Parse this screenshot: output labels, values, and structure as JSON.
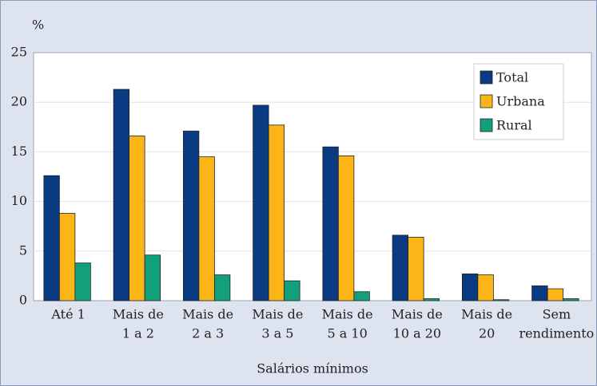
{
  "chart_data": {
    "type": "bar",
    "y_unit_label": "%",
    "x_axis_label": "Salários mínimos",
    "categories": [
      [
        "Até 1"
      ],
      [
        "Mais de",
        "1 a 2"
      ],
      [
        "Mais de",
        "2 a 3"
      ],
      [
        "Mais de",
        "3 a 5"
      ],
      [
        "Mais de",
        "5 a 10"
      ],
      [
        "Mais de",
        "10 a 20"
      ],
      [
        "Mais de",
        "20"
      ],
      [
        "Sem",
        "rendimento"
      ]
    ],
    "series": [
      {
        "name": "Total",
        "color": "#0a3a82",
        "values": [
          12.6,
          21.3,
          17.1,
          19.7,
          15.5,
          6.6,
          2.7,
          1.5
        ]
      },
      {
        "name": "Urbana",
        "color": "#fbb516",
        "values": [
          8.8,
          16.6,
          14.5,
          17.7,
          14.6,
          6.4,
          2.6,
          1.2
        ]
      },
      {
        "name": "Rural",
        "color": "#12a07c",
        "values": [
          3.8,
          4.6,
          2.6,
          2.0,
          0.9,
          0.2,
          0.1,
          0.2
        ]
      }
    ],
    "ylim": [
      0,
      25
    ],
    "yticks": [
      0,
      5,
      10,
      15,
      20,
      25
    ],
    "grid": true,
    "legend": "upper right"
  }
}
